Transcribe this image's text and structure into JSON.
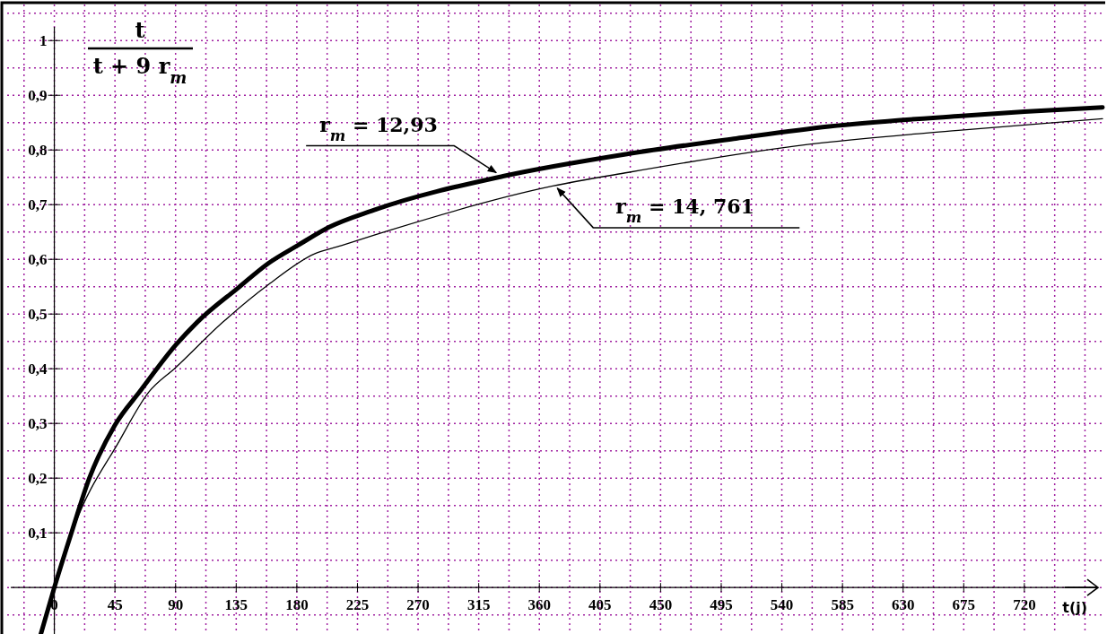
{
  "chart_data": {
    "type": "line",
    "ylabel": "t\nt + 9 r$_{m}$",
    "xlabel": "t(j)",
    "xlim": [
      -35,
      780
    ],
    "ylim": [
      -0.085,
      1.066
    ],
    "xticks": [
      {
        "value": 0,
        "label": "0"
      },
      45,
      90,
      135,
      180,
      225,
      270,
      315,
      360,
      405,
      450,
      495,
      540,
      585,
      630,
      675,
      720
    ],
    "yticks": [
      {
        "value": 0.1,
        "label": "0,1"
      },
      {
        "value": 0.2,
        "label": "0,2"
      },
      {
        "value": 0.3,
        "label": "0,3"
      },
      {
        "value": 0.4,
        "label": "0,4"
      },
      {
        "value": 0.5,
        "label": "0,5"
      },
      {
        "value": 0.6,
        "label": "0,6"
      },
      {
        "value": 0.7,
        "label": "0,7"
      },
      {
        "value": 0.8,
        "label": "0,8"
      },
      {
        "value": 0.9,
        "label": "0,9"
      },
      {
        "value": 1,
        "label": "1"
      }
    ],
    "grid": true,
    "marker": "none",
    "line_style": "solid",
    "series": [
      {
        "color": "#000000",
        "x": [
          -10,
          0,
          12.7,
          26,
          45,
          64,
          90,
          106,
          137,
          159,
          181,
          204,
          237,
          333,
          426,
          506,
          575,
          671,
          720,
          778
        ],
        "values": [
          -0.085,
          0,
          0.1,
          0.2,
          0.297,
          0.36,
          0.443,
          0.485,
          0.549,
          0.593,
          0.626,
          0.659,
          0.69,
          0.752,
          0.793,
          0.821,
          0.843,
          0.862,
          0.87,
          0.878
        ]
      },
      {
        "color": "#000000",
        "x": [
          -9,
          0,
          15,
          48,
          70,
          90,
          125,
          159,
          193,
          213,
          237,
          370,
          426,
          559,
          671,
          778
        ],
        "values": [
          -0.085,
          0,
          0.113,
          0.267,
          0.357,
          0.402,
          0.485,
          0.554,
          0.61,
          0.625,
          0.644,
          0.734,
          0.759,
          0.81,
          0.836,
          0.857
        ]
      }
    ],
    "annotations": [
      {
        "text": "r$_{m}$ = 12,93",
        "x": 330,
        "y": 0.752
      },
      {
        "text": "r$_{m}$ = 14, 761",
        "x": 372,
        "y": 0.735
      }
    ]
  }
}
